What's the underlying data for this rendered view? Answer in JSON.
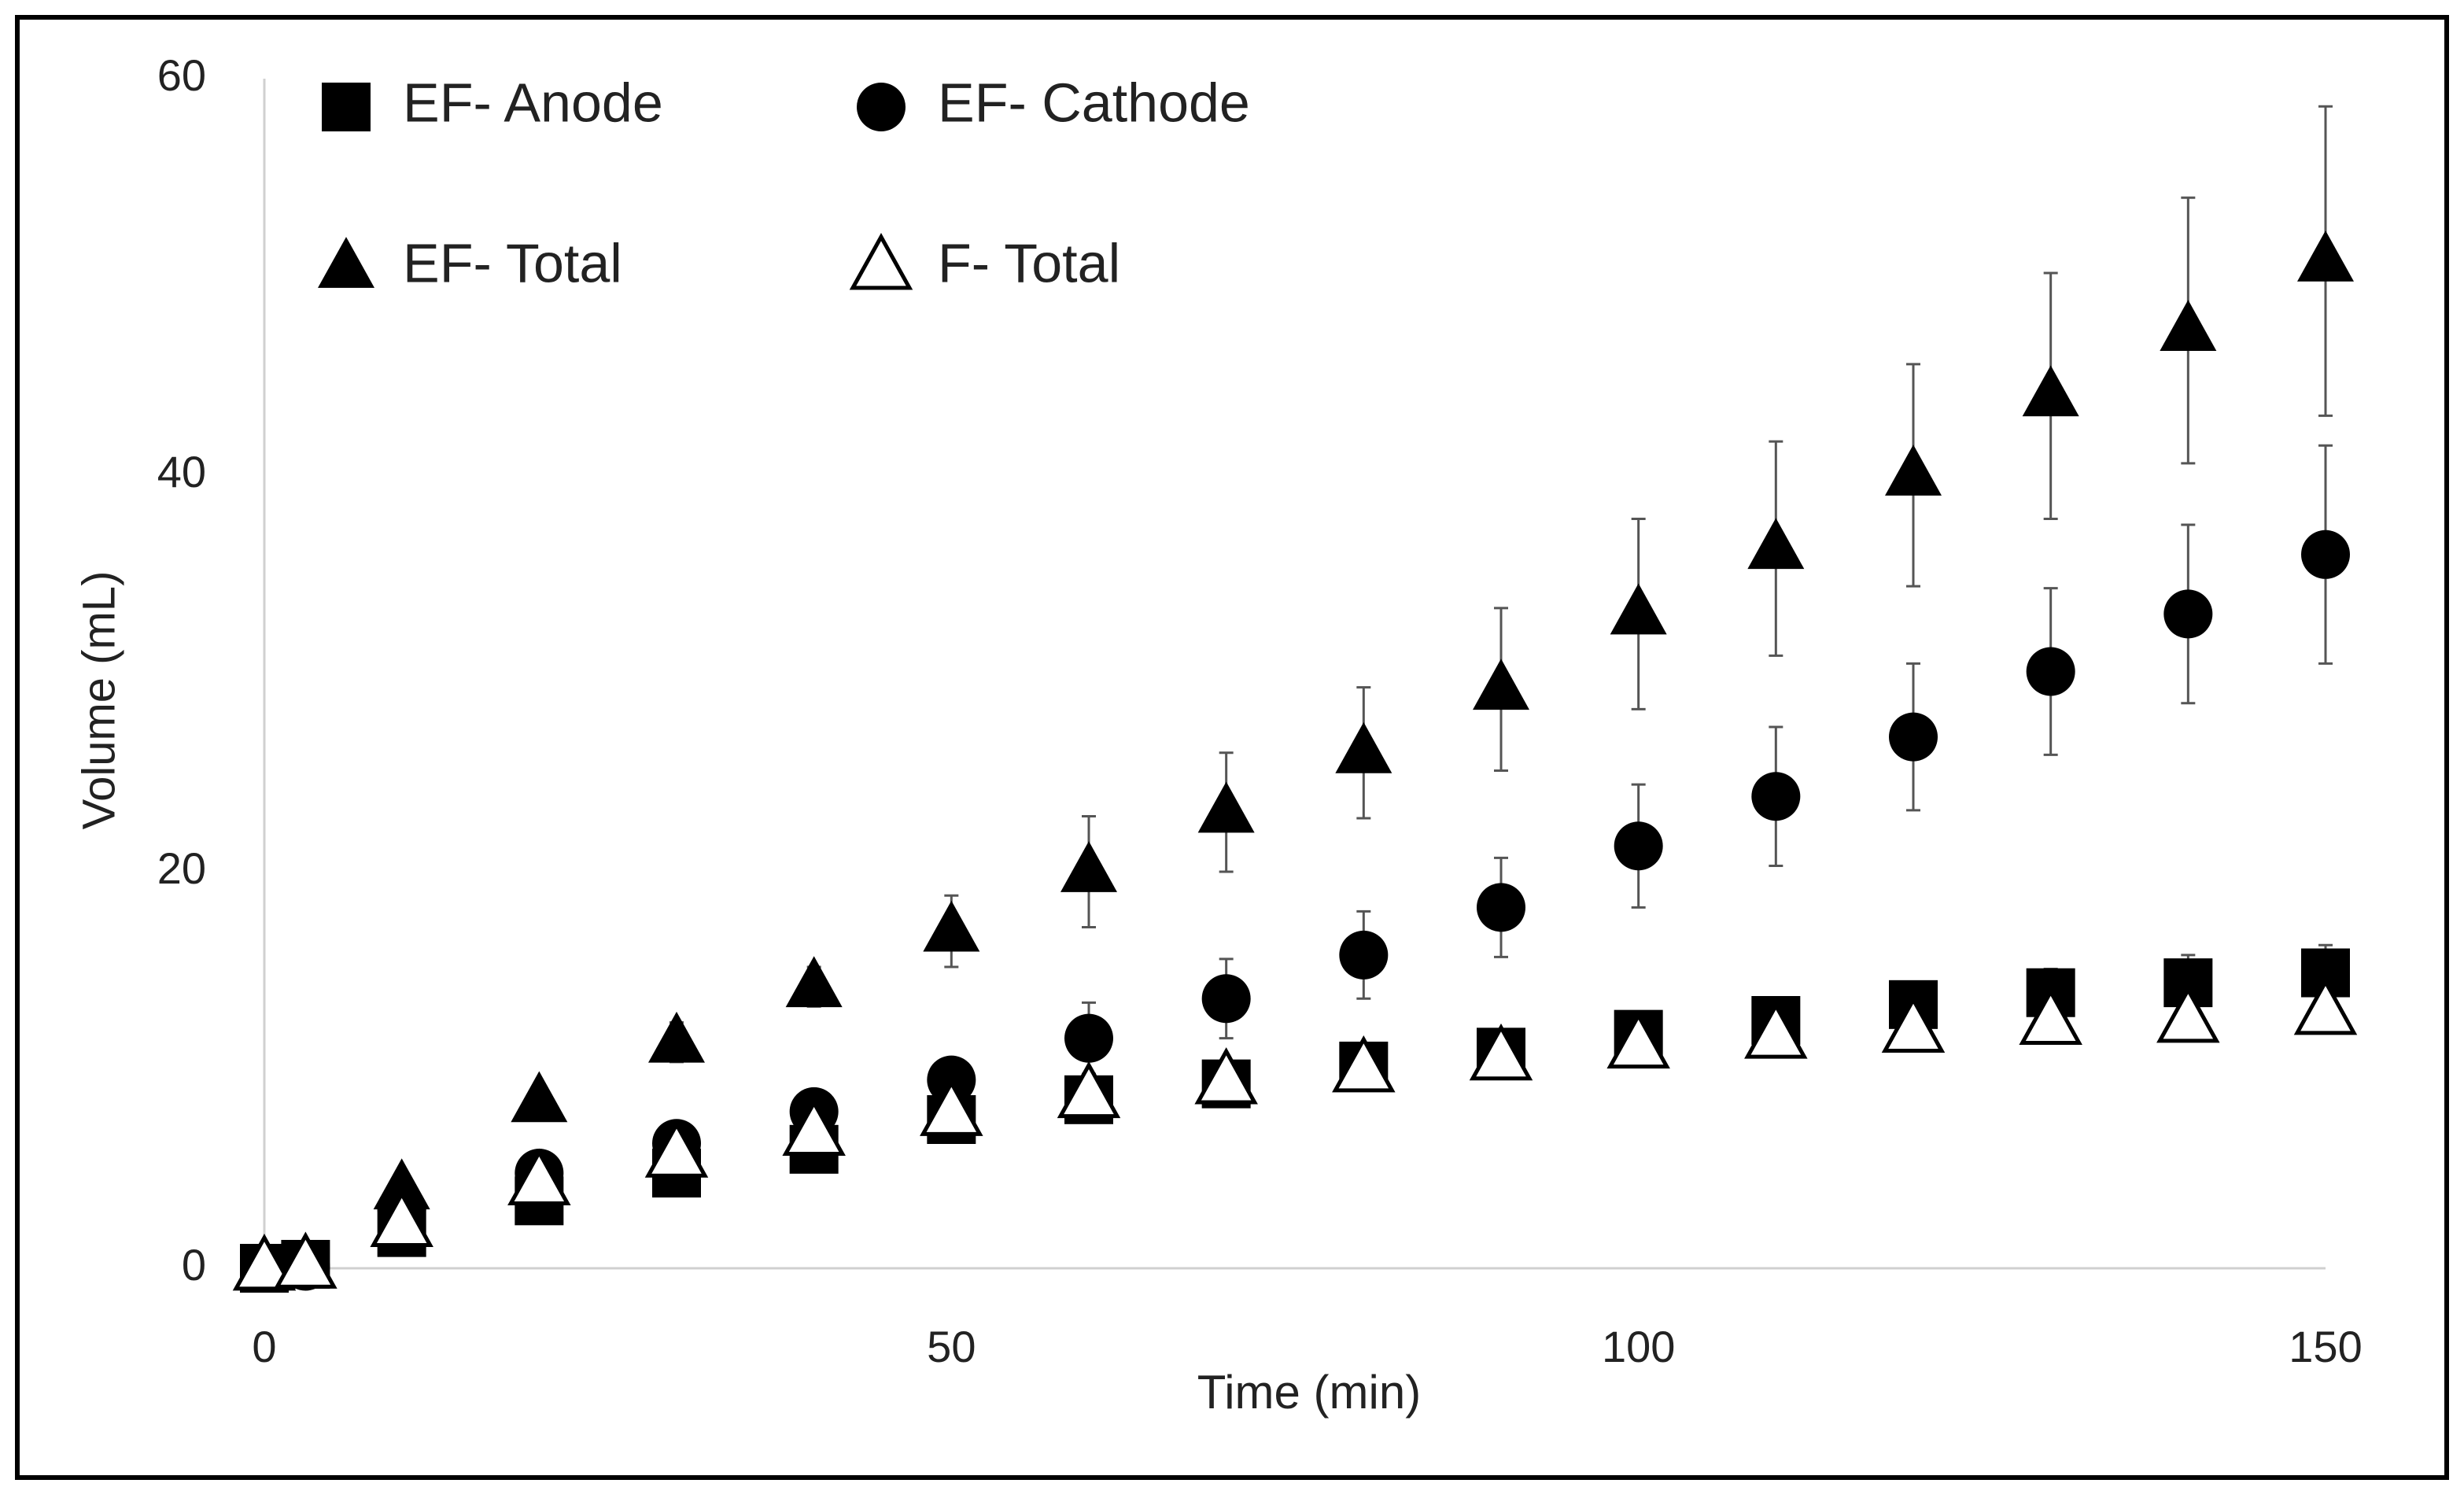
{
  "chart_data": {
    "type": "scatter",
    "x_label": "Time (min)",
    "y_label": "Volume (mL)",
    "xlim": [
      0,
      150
    ],
    "ylim": [
      0,
      60
    ],
    "xticks": [
      0,
      50,
      100,
      150
    ],
    "yticks": [
      0,
      20,
      40,
      60
    ],
    "x": [
      0,
      3,
      10,
      20,
      30,
      40,
      50,
      60,
      70,
      80,
      90,
      100,
      110,
      120,
      130,
      140,
      150
    ],
    "series": [
      {
        "name": "EF- Anode",
        "marker": "square",
        "color": "#000000",
        "values": [
          0,
          0.2,
          1.8,
          3.4,
          4.8,
          6,
          7.5,
          8.5,
          9.3,
          10.2,
          10.9,
          11.8,
          12.5,
          13.3,
          13.9,
          14.4,
          14.9
        ],
        "errors": [
          0,
          0.1,
          0.2,
          0.3,
          0.4,
          0.4,
          0.5,
          0.6,
          0.6,
          0.7,
          0.8,
          0.9,
          1.0,
          1.1,
          1.2,
          1.4,
          1.4
        ]
      },
      {
        "name": "EF- Cathode",
        "marker": "circle",
        "color": "#000000",
        "values": [
          0,
          0.1,
          3,
          4.8,
          6.3,
          7.9,
          9.5,
          11.6,
          13.6,
          15.8,
          18.2,
          21.3,
          23.8,
          26.8,
          30.1,
          33,
          36
        ],
        "errors": [
          0,
          0.1,
          0.3,
          0.4,
          0.5,
          0.6,
          0.8,
          1.8,
          2,
          2.2,
          2.5,
          3.1,
          3.5,
          3.7,
          4.2,
          4.5,
          5.5
        ]
      },
      {
        "name": "EF- Total",
        "marker": "triangle",
        "color": "#000000",
        "values": [
          0,
          0.2,
          4,
          8.4,
          11.4,
          14.2,
          17,
          20,
          23,
          26,
          29.2,
          33,
          36.3,
          40,
          44,
          47.3,
          50.8
        ],
        "errors": [
          0,
          0.1,
          0.3,
          0.5,
          1,
          1,
          1.8,
          2.8,
          3,
          3.3,
          4.1,
          4.8,
          5.4,
          5.6,
          6.2,
          6.7,
          7.8
        ]
      },
      {
        "name": "F- Total",
        "marker": "triangle-open",
        "color": "#000000",
        "values": [
          0,
          0.1,
          2.2,
          4.3,
          5.7,
          6.8,
          7.8,
          8.7,
          9.4,
          10,
          10.6,
          11.2,
          11.7,
          12,
          12.4,
          12.5,
          12.9
        ]
      }
    ]
  }
}
